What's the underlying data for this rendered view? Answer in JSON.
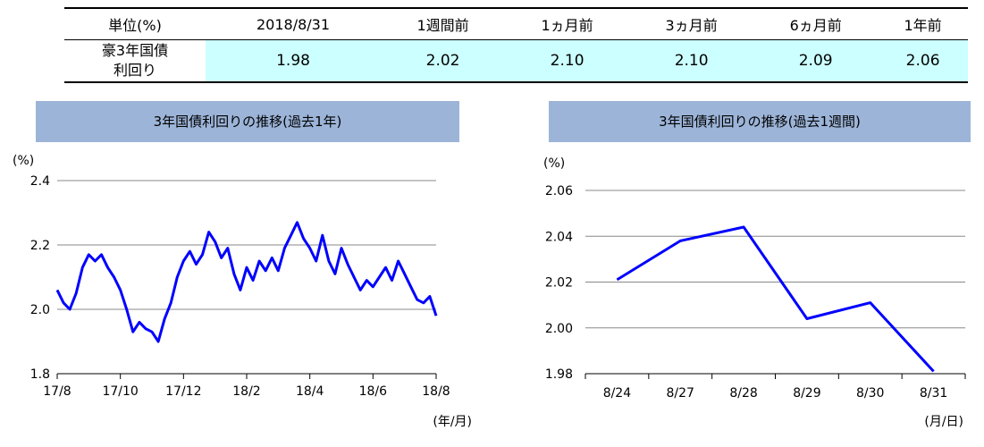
{
  "summary_table": {
    "headers": [
      "単位(%)",
      "2018/8/31",
      "1週間前",
      "1ヵ月前",
      "3ヵ月前",
      "6ヵ月前",
      "1年前"
    ],
    "row_label_line1": "豪3年国債",
    "row_label_line2": "利回り",
    "values": [
      "1.98",
      "2.02",
      "2.10",
      "2.10",
      "2.09",
      "2.06"
    ]
  },
  "chart_data": [
    {
      "type": "line",
      "title": "3年国債利回りの推移(過去1年)",
      "ylabel": "(%)",
      "xlabel": "(年/月)",
      "ylim": [
        1.8,
        2.4
      ],
      "yticks": [
        "2.4",
        "2.2",
        "2.0",
        "1.8"
      ],
      "xticks": [
        "17/8",
        "17/10",
        "17/12",
        "18/2",
        "18/4",
        "18/6",
        "18/8"
      ],
      "color": "#0000ff",
      "series": [
        {
          "x": [
            0.0,
            0.1,
            0.2,
            0.3,
            0.4,
            0.5,
            0.6,
            0.7,
            0.8,
            0.9,
            1.0,
            1.1,
            1.2,
            1.3,
            1.4,
            1.5,
            1.6,
            1.7,
            1.8,
            1.9,
            2.0,
            2.1,
            2.2,
            2.3,
            2.4,
            2.5,
            2.6,
            2.7,
            2.8,
            2.9,
            3.0,
            3.1,
            3.2,
            3.3,
            3.4,
            3.5,
            3.6,
            3.7,
            3.8,
            3.9,
            4.0,
            4.1,
            4.2,
            4.3,
            4.4,
            4.5,
            4.6,
            4.7,
            4.8,
            4.9,
            5.0,
            5.1,
            5.2,
            5.3,
            5.4,
            5.5,
            5.6,
            5.7,
            5.8,
            5.9,
            6.0
          ],
          "values": [
            2.06,
            2.02,
            2.0,
            2.05,
            2.13,
            2.17,
            2.15,
            2.17,
            2.13,
            2.1,
            2.06,
            2.0,
            1.93,
            1.96,
            1.94,
            1.93,
            1.9,
            1.97,
            2.02,
            2.1,
            2.15,
            2.18,
            2.14,
            2.17,
            2.24,
            2.21,
            2.16,
            2.19,
            2.11,
            2.06,
            2.13,
            2.09,
            2.15,
            2.12,
            2.16,
            2.12,
            2.19,
            2.23,
            2.27,
            2.22,
            2.19,
            2.15,
            2.23,
            2.15,
            2.11,
            2.19,
            2.14,
            2.1,
            2.06,
            2.09,
            2.07,
            2.1,
            2.13,
            2.09,
            2.15,
            2.11,
            2.07,
            2.03,
            2.02,
            2.04,
            1.98
          ]
        }
      ]
    },
    {
      "type": "line",
      "title": "3年国債利回りの推移(過去1週間)",
      "ylabel": "(%)",
      "xlabel": "(月/日)",
      "ylim": [
        1.98,
        2.06
      ],
      "yticks": [
        "2.06",
        "2.04",
        "2.02",
        "2.00",
        "1.98"
      ],
      "categories": [
        "8/24",
        "8/27",
        "8/28",
        "8/29",
        "8/30",
        "8/31"
      ],
      "color": "#0000ff",
      "series": [
        {
          "values": [
            2.021,
            2.038,
            2.044,
            2.004,
            2.011,
            1.981
          ]
        }
      ]
    }
  ]
}
